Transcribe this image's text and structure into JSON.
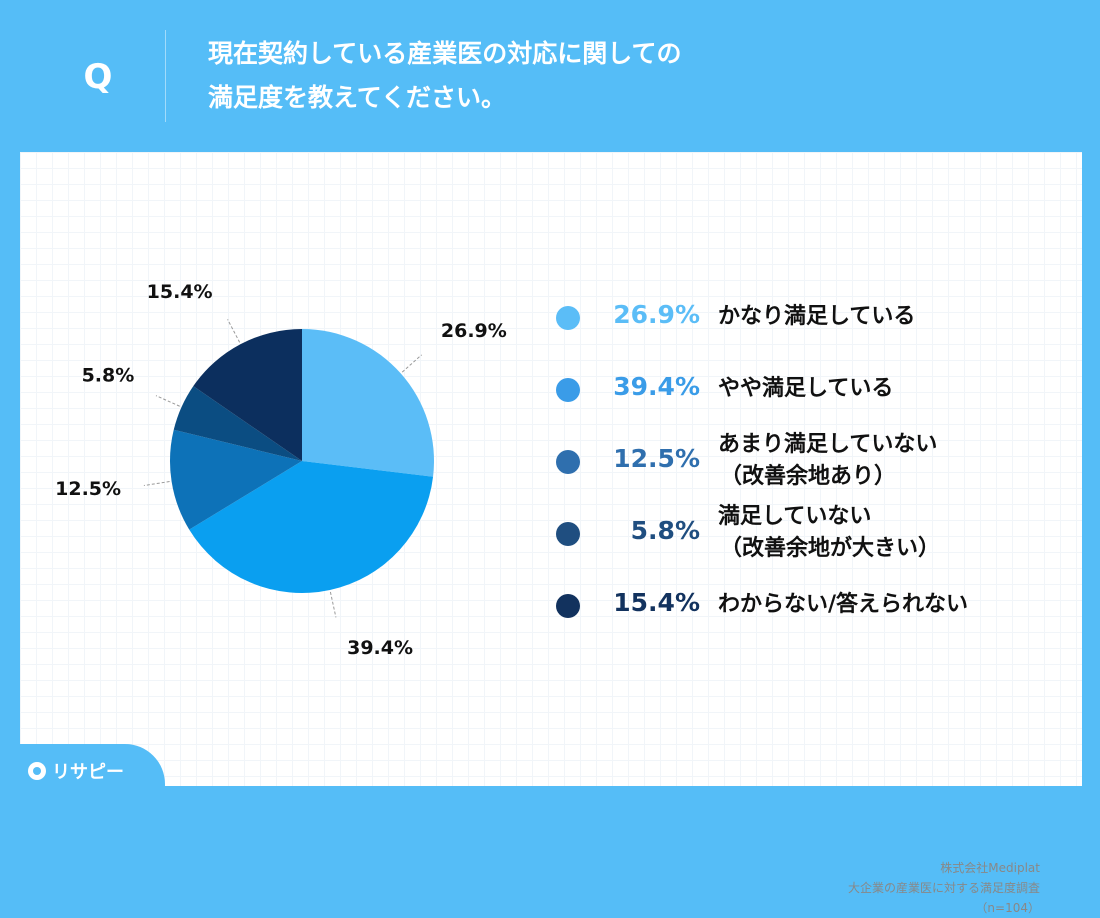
{
  "header": {
    "q_label": "Q",
    "question_line1": "現在契約している産業医の対応に関しての",
    "question_line2": "満足度を教えてください。"
  },
  "chart_data": {
    "type": "pie",
    "title": "",
    "start_angle_deg": 0,
    "direction": "clockwise",
    "slices": [
      {
        "value": 26.9,
        "label": "26.9%",
        "name_line1": "かなり満足している",
        "name_line2": "",
        "color": "#5bbdf7"
      },
      {
        "value": 39.4,
        "label": "39.4%",
        "name_line1": "やや満足している",
        "name_line2": "",
        "color": "#0a9ff0"
      },
      {
        "value": 12.5,
        "label": "12.5%",
        "name_line1": "あまり満足していない",
        "name_line2": "（改善余地あり）",
        "color": "#0d72b8"
      },
      {
        "value": 5.8,
        "label": "5.8%",
        "name_line1": "満足していない",
        "name_line2": "（改善余地が大きい）",
        "color": "#0b4d82"
      },
      {
        "value": 15.4,
        "label": "15.4%",
        "name_line1": "わからない/答えられない",
        "name_line2": "",
        "color": "#0c2f5e"
      }
    ],
    "legend_position": "right"
  },
  "legend_colors": [
    "#5bbdf7",
    "#3a9ce8",
    "#2f6fae",
    "#1f4e80",
    "#12325e"
  ],
  "source": {
    "company": "株式会社Mediplat",
    "survey": "大企業の産業医に対する満足度調査",
    "sample": "（n=104）"
  },
  "logo": {
    "text": "リサピー"
  },
  "theme": {
    "background": "#55bdf7",
    "card": "#ffffff"
  }
}
